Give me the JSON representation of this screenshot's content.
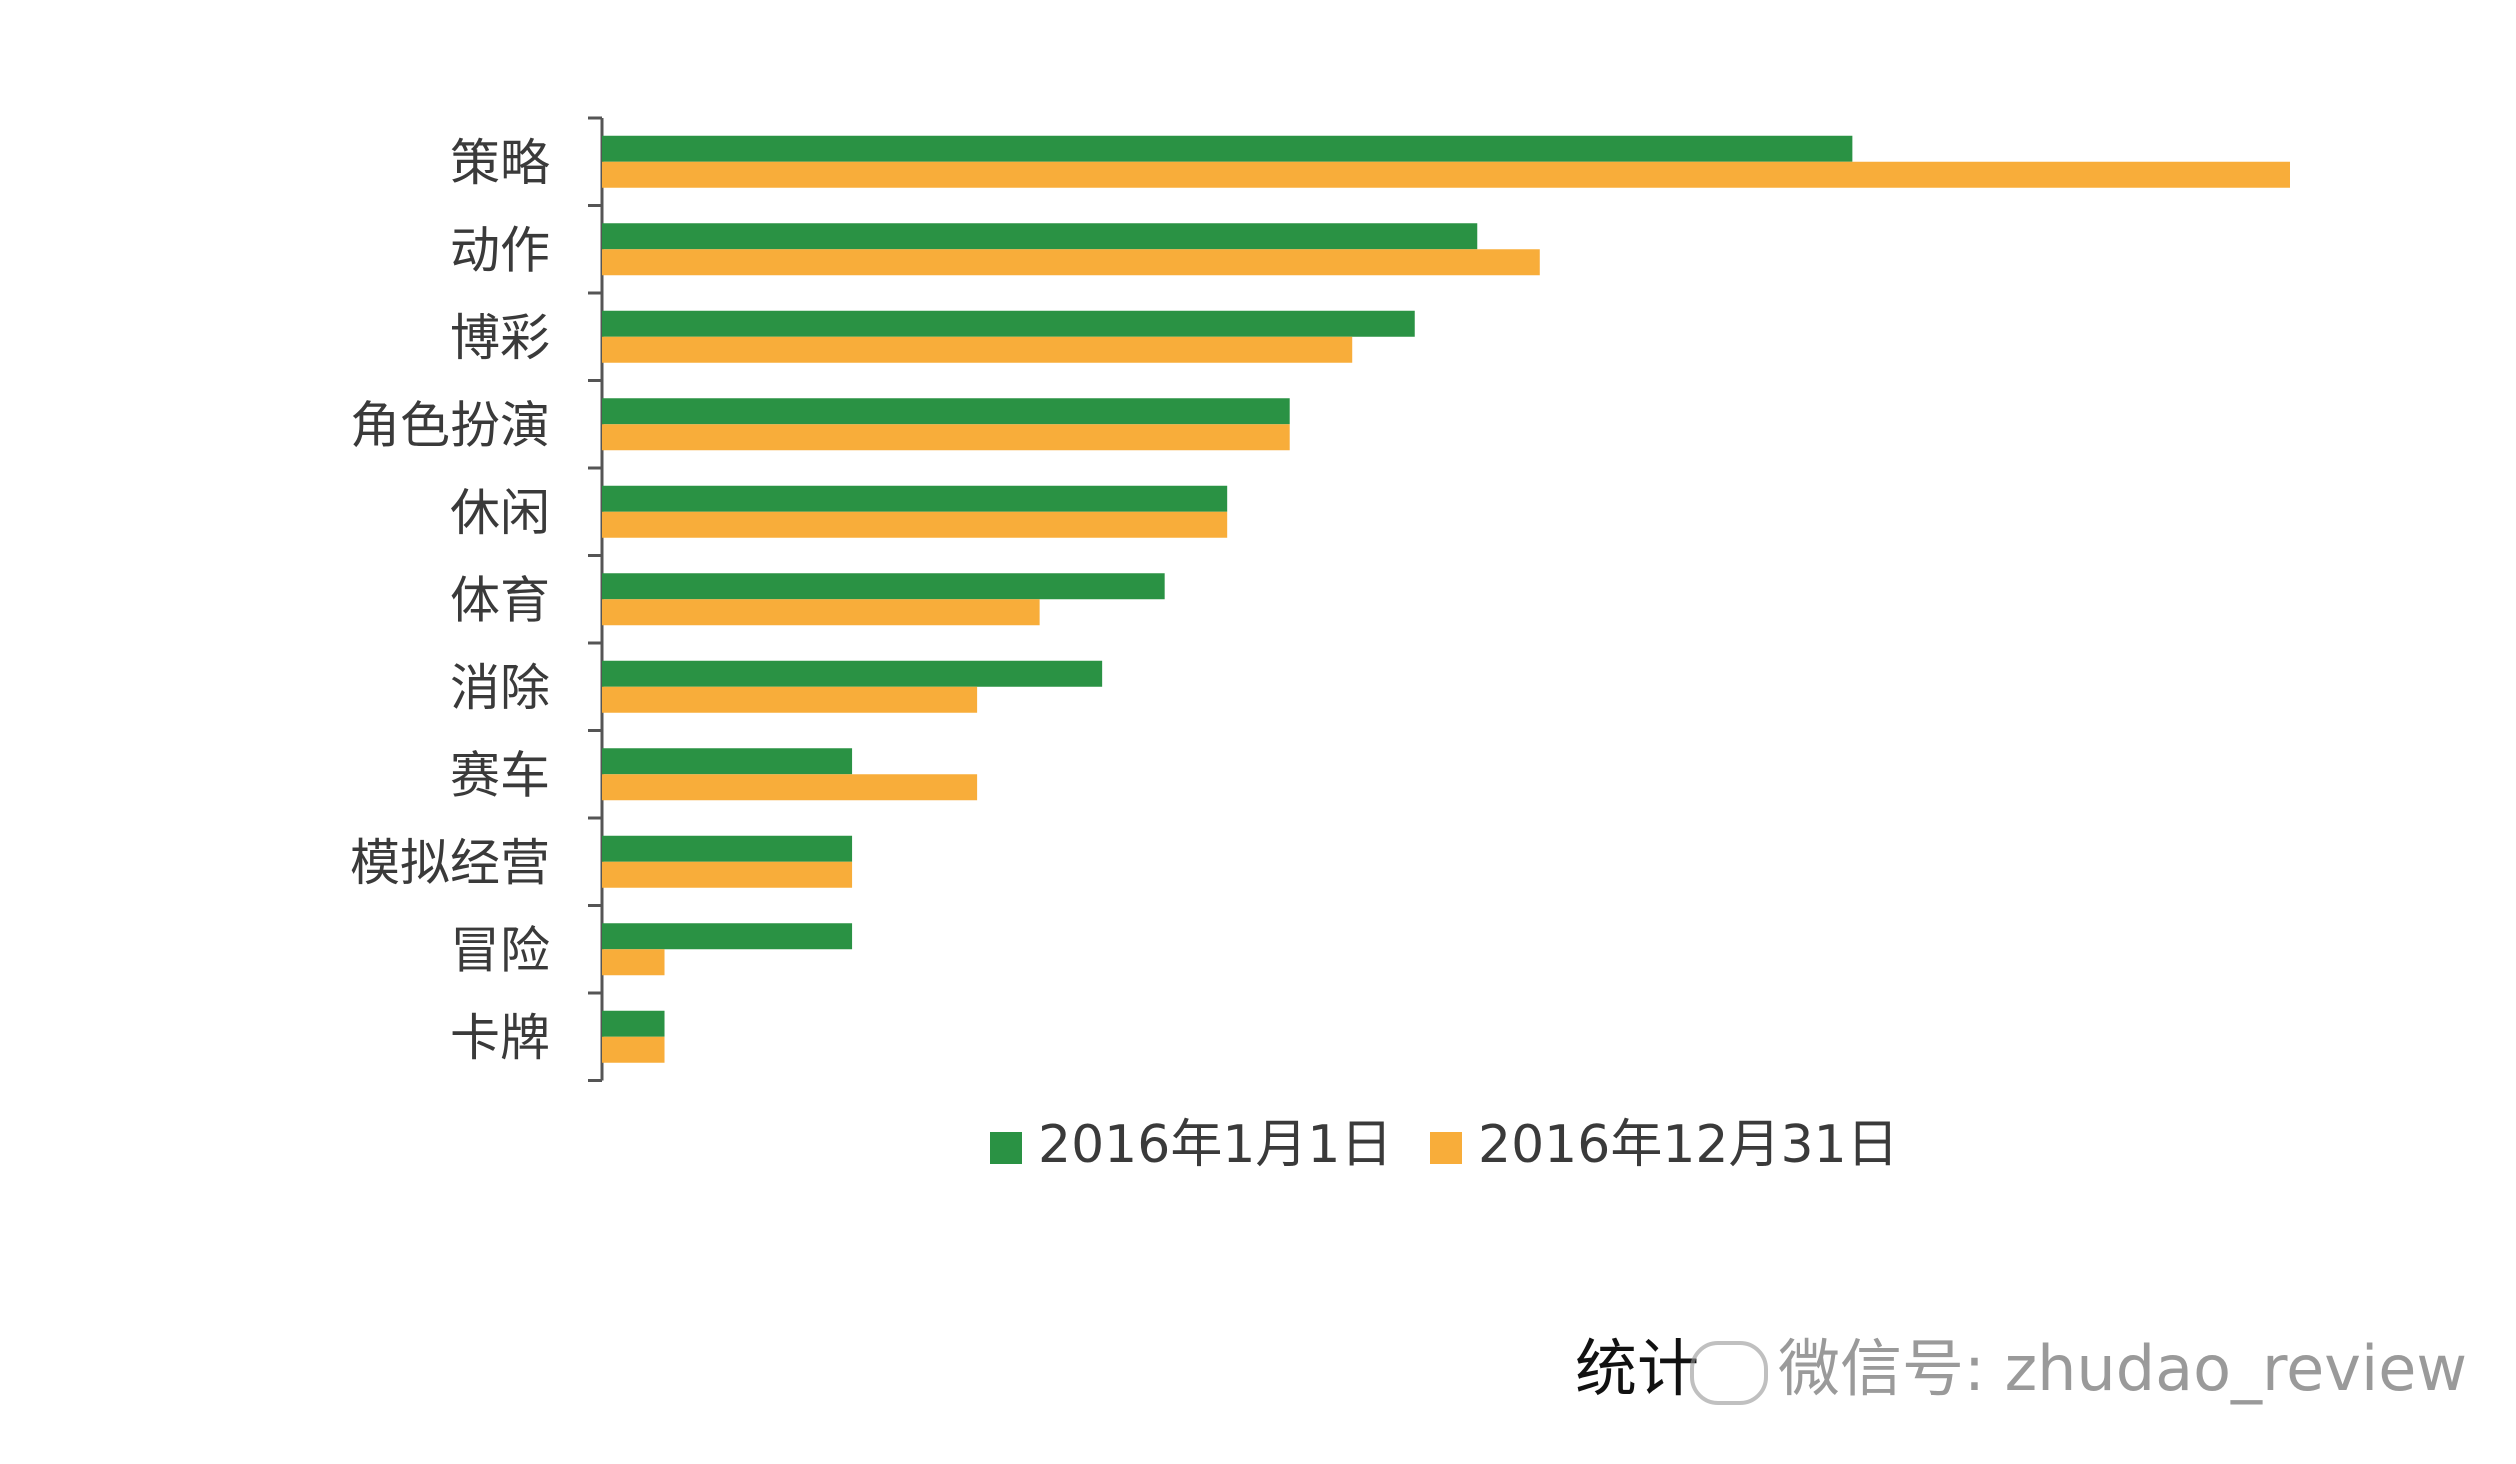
{
  "chart_data": {
    "type": "bar",
    "orientation": "horizontal",
    "categories": [
      "策略",
      "动作",
      "博彩",
      "角色扮演",
      "休闲",
      "体育",
      "消除",
      "赛车",
      "模拟经营",
      "冒险",
      "卡牌"
    ],
    "series": [
      {
        "name": "2016年1月1日",
        "color": "#2a9244",
        "values": [
          20,
          14,
          13,
          11,
          10,
          9,
          8,
          4,
          4,
          4,
          1
        ]
      },
      {
        "name": "2016年12月31日",
        "color": "#f8ad3a",
        "values": [
          27,
          15,
          12,
          11,
          10,
          7,
          6,
          6,
          4,
          1,
          1
        ]
      }
    ],
    "xlim": [
      0,
      27
    ],
    "grid": false,
    "legend": "bottom"
  },
  "footer": {
    "source": "统计",
    "watermark": "微信号: zhudao_review"
  },
  "colors": {
    "axis": "#555555",
    "text": "#3a3a3a"
  }
}
